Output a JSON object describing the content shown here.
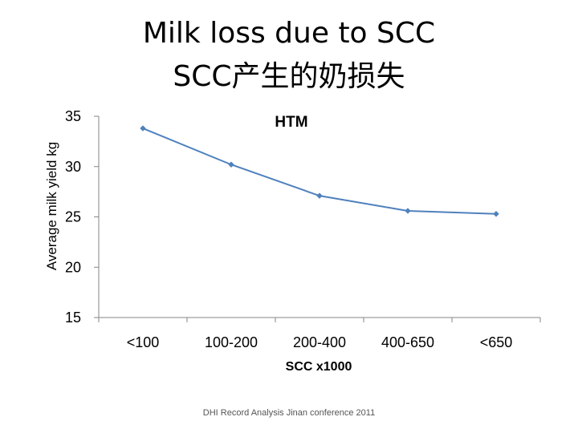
{
  "slide": {
    "title_line1": "Milk loss due to SCC",
    "title_line2": "SCC产生的奶损失",
    "footer": "DHI Record Analysis Jinan conference 2011"
  },
  "chart_data": {
    "type": "line",
    "title": "HTM",
    "xlabel": "SCC x1000",
    "ylabel": "Average milk yield kg",
    "categories": [
      "<100",
      "100-200",
      "200-400",
      "400-650",
      "<650"
    ],
    "series": [
      {
        "values": [
          33.8,
          30.2,
          27.1,
          25.6,
          25.3
        ]
      }
    ],
    "ylim": [
      15,
      35
    ],
    "yticks": [
      15,
      20,
      25,
      30,
      35
    ],
    "grid": false,
    "legend": "none",
    "colors": {
      "line": "#4f81bd",
      "axis": "#868686"
    }
  }
}
